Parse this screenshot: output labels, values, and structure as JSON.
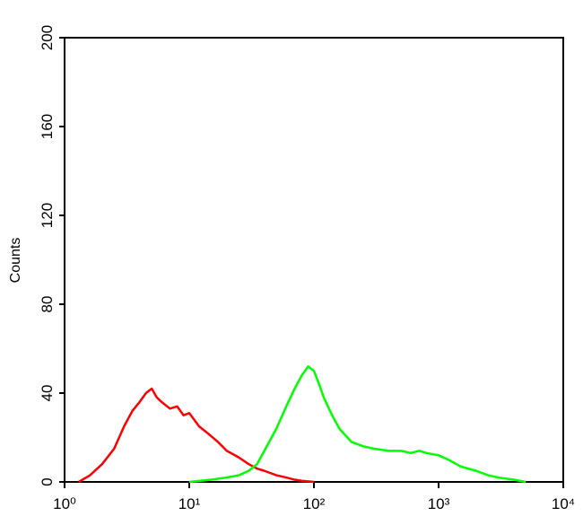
{
  "chart_data": {
    "type": "line",
    "y_label": "Counts",
    "xscale": "log",
    "xlim": [
      1,
      10000
    ],
    "xticks": [
      {
        "value": 1,
        "label": "10⁰"
      },
      {
        "value": 10,
        "label": "10¹"
      },
      {
        "value": 100,
        "label": "10²"
      },
      {
        "value": 1000,
        "label": "10³"
      },
      {
        "value": 10000,
        "label": "10⁴"
      }
    ],
    "ylim": [
      0,
      200
    ],
    "yticks": [
      0,
      40,
      80,
      120,
      160,
      200
    ],
    "series": [
      {
        "color": "#ff0000",
        "x": [
          1.3,
          1.6,
          2,
          2.5,
          3,
          3.5,
          4,
          4.5,
          5,
          5.5,
          6,
          7,
          8,
          9,
          10,
          12,
          14,
          17,
          20,
          25,
          30,
          35,
          40,
          50,
          60,
          70,
          80,
          100
        ],
        "values": [
          0,
          3,
          8,
          15,
          25,
          32,
          36,
          40,
          42,
          38,
          36,
          33,
          34,
          30,
          31,
          25,
          22,
          18,
          14,
          11,
          8,
          6,
          5,
          3,
          2,
          1,
          0.5,
          0
        ]
      },
      {
        "color": "#00ff00",
        "x": [
          10,
          15,
          20,
          25,
          30,
          35,
          40,
          50,
          60,
          70,
          80,
          90,
          100,
          110,
          120,
          140,
          160,
          200,
          250,
          300,
          400,
          500,
          600,
          700,
          800,
          1000,
          1200,
          1500,
          2000,
          2500,
          3000,
          4000,
          5000
        ],
        "values": [
          0,
          1,
          2,
          3,
          5,
          8,
          14,
          24,
          34,
          42,
          48,
          52,
          50,
          44,
          38,
          30,
          24,
          18,
          16,
          15,
          14,
          14,
          13,
          14,
          13,
          12,
          10,
          7,
          5,
          3,
          2,
          1,
          0
        ]
      }
    ]
  }
}
